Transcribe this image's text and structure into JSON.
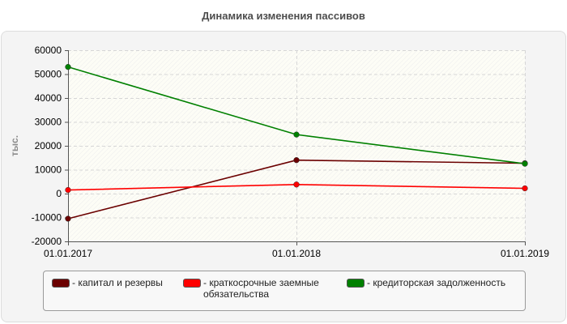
{
  "chart_data": {
    "type": "line",
    "title": "Динамика изменения пассивов",
    "ylabel": "тыс.",
    "xlabel": "",
    "categories": [
      "01.01.2017",
      "01.01.2018",
      "01.01.2019"
    ],
    "ylim": [
      -20000,
      60000
    ],
    "yticks": [
      60000,
      50000,
      40000,
      30000,
      20000,
      10000,
      0,
      -10000,
      -20000
    ],
    "grid": true,
    "legend_position": "bottom",
    "series": [
      {
        "name": "- капитал и резервы",
        "color": "#6b0000",
        "values": [
          -10500,
          14000,
          12700
        ]
      },
      {
        "name": "- краткосрочные заемные обязательства",
        "color": "#ff0000",
        "values": [
          1500,
          3800,
          2200
        ]
      },
      {
        "name": "- кредиторская задолженность",
        "color": "#008000",
        "values": [
          53000,
          24700,
          12500
        ]
      }
    ]
  }
}
